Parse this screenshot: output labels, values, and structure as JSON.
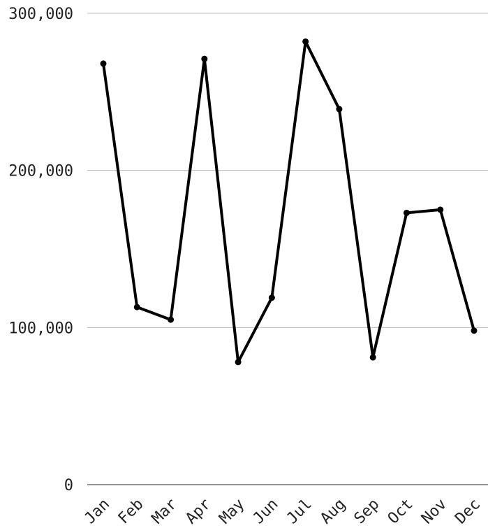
{
  "chart_data": {
    "type": "line",
    "title": "",
    "xlabel": "",
    "ylabel": "",
    "ylim": [
      0,
      300000
    ],
    "y_ticks": [
      0,
      100000,
      200000,
      300000
    ],
    "y_tick_labels": [
      "0",
      "100,000",
      "200,000",
      "300,000"
    ],
    "grid": "horizontal",
    "legend": "none",
    "line_color": "#000000",
    "categories": [
      "Jan",
      "Feb",
      "Mar",
      "Apr",
      "May",
      "Jun",
      "Jul",
      "Aug",
      "Sep",
      "Oct",
      "Nov",
      "Dec"
    ],
    "values": [
      268000,
      113000,
      105000,
      271000,
      78000,
      119000,
      282000,
      239000,
      81000,
      173000,
      175000,
      98000
    ]
  }
}
